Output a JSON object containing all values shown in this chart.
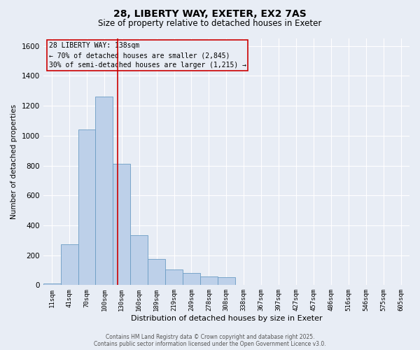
{
  "title_line1": "28, LIBERTY WAY, EXETER, EX2 7AS",
  "title_line2": "Size of property relative to detached houses in Exeter",
  "xlabel": "Distribution of detached houses by size in Exeter",
  "ylabel": "Number of detached properties",
  "bin_labels": [
    "11sqm",
    "41sqm",
    "70sqm",
    "100sqm",
    "130sqm",
    "160sqm",
    "189sqm",
    "219sqm",
    "249sqm",
    "278sqm",
    "308sqm",
    "338sqm",
    "367sqm",
    "397sqm",
    "427sqm",
    "457sqm",
    "486sqm",
    "516sqm",
    "546sqm",
    "575sqm",
    "605sqm"
  ],
  "bin_values": [
    10,
    275,
    1040,
    1260,
    810,
    335,
    175,
    105,
    80,
    60,
    55,
    0,
    0,
    0,
    0,
    0,
    0,
    0,
    0,
    0,
    0
  ],
  "bar_color": "#BDD0E9",
  "bar_edge_color": "#6A9CC4",
  "property_line_label": "28 LIBERTY WAY: 138sqm",
  "annotation_line2": "← 70% of detached houses are smaller (2,845)",
  "annotation_line3": "30% of semi-detached houses are larger (1,215) →",
  "vline_color": "#CC0000",
  "box_edge_color": "#CC0000",
  "background_color": "#E8EDF5",
  "ylim": [
    0,
    1650
  ],
  "yticks": [
    0,
    200,
    400,
    600,
    800,
    1000,
    1200,
    1400,
    1600
  ],
  "footer_line1": "Contains HM Land Registry data © Crown copyright and database right 2025.",
  "footer_line2": "Contains public sector information licensed under the Open Government Licence v3.0."
}
